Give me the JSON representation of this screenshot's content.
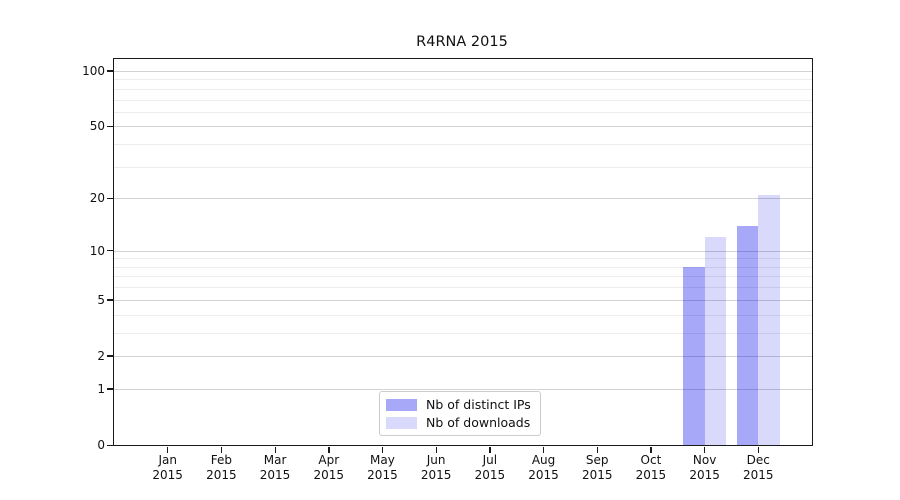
{
  "title": "R4RNA 2015",
  "chart_data": {
    "type": "bar",
    "title": "R4RNA 2015",
    "scale": "log1p",
    "grid": "horizontal",
    "legend_position": "bottom-center-inside",
    "ylim": [
      0,
      116
    ],
    "yticks": [
      0,
      1,
      2,
      5,
      10,
      20,
      50,
      100
    ],
    "minor_yticks": [
      3,
      4,
      6,
      7,
      8,
      9,
      30,
      40,
      60,
      70,
      80,
      90
    ],
    "categories": [
      {
        "line1": "Jan",
        "line2": "2015"
      },
      {
        "line1": "Feb",
        "line2": "2015"
      },
      {
        "line1": "Mar",
        "line2": "2015"
      },
      {
        "line1": "Apr",
        "line2": "2015"
      },
      {
        "line1": "May",
        "line2": "2015"
      },
      {
        "line1": "Jun",
        "line2": "2015"
      },
      {
        "line1": "Jul",
        "line2": "2015"
      },
      {
        "line1": "Aug",
        "line2": "2015"
      },
      {
        "line1": "Sep",
        "line2": "2015"
      },
      {
        "line1": "Oct",
        "line2": "2015"
      },
      {
        "line1": "Nov",
        "line2": "2015"
      },
      {
        "line1": "Dec",
        "line2": "2015"
      }
    ],
    "series": [
      {
        "name": "Nb of distinct IPs",
        "color": "rgba(0, 0, 238, 0.34)",
        "values": [
          0,
          0,
          0,
          0,
          0,
          0,
          0,
          0,
          0,
          0,
          8,
          14
        ]
      },
      {
        "name": "Nb of downloads",
        "color": "rgba(0, 0, 238, 0.15)",
        "values": [
          0,
          0,
          0,
          0,
          0,
          0,
          0,
          0,
          0,
          0,
          12,
          21
        ]
      }
    ]
  }
}
